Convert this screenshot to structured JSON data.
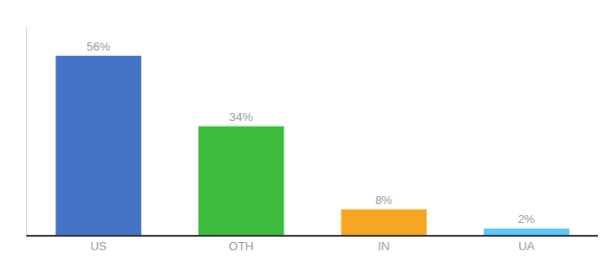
{
  "chart_data": {
    "type": "bar",
    "categories": [
      "US",
      "OTH",
      "IN",
      "UA"
    ],
    "values": [
      56,
      34,
      8,
      2
    ],
    "value_labels": [
      "56%",
      "34%",
      "8%",
      "2%"
    ],
    "colors": [
      "#4472c4",
      "#3dbb3d",
      "#f5a623",
      "#5bc8f5"
    ],
    "ylim": [
      0,
      65
    ],
    "data_labels": true,
    "tick_labels": "x",
    "grid": false
  }
}
